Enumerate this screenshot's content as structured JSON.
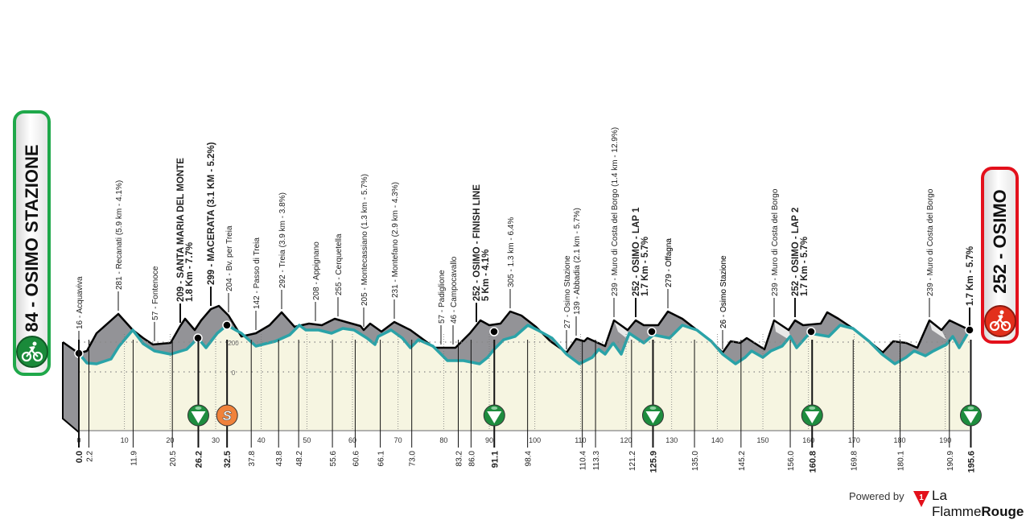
{
  "start": {
    "label": "84 - OSIMO STAZIONE",
    "altitude": 84,
    "name": "OSIMO STAZIONE",
    "color": "#1fa84a",
    "icon": "cyclist-icon"
  },
  "finish": {
    "label": "252 - OSIMO",
    "altitude": 252,
    "name": "OSIMO",
    "color": "#e3101b",
    "icon": "cyclist-icon"
  },
  "footer": {
    "powered_by": "Powered by",
    "brand_a": "La Flamme",
    "brand_b": "Rouge"
  },
  "colors": {
    "profile_fill": "#939397",
    "route_line": "#2aa3a8",
    "ground_fill": "#f6f5e1",
    "climb_highlight": "#e8e8e8",
    "sprint_green": "#1e8c3e",
    "sprint_orange": "#f0823a"
  },
  "chart_data": {
    "type": "area",
    "title": "",
    "xlabel": "km",
    "ylabel": "altitude (m)",
    "x_ticks": [
      0,
      10,
      20,
      30,
      40,
      50,
      60,
      70,
      80,
      90,
      100,
      110,
      120,
      130,
      140,
      150,
      160,
      170,
      180,
      190
    ],
    "y_ticks": [
      0,
      200
    ],
    "xlim": [
      0,
      195.6
    ],
    "total_km": 195.6,
    "km_markers": [
      {
        "km": "0.0",
        "bold": true
      },
      {
        "km": "2.2"
      },
      {
        "km": "11.9"
      },
      {
        "km": "20.5"
      },
      {
        "km": "26.2",
        "bold": true
      },
      {
        "km": "32.5",
        "bold": true
      },
      {
        "km": "37.8"
      },
      {
        "km": "43.8"
      },
      {
        "km": "48.2"
      },
      {
        "km": "55.6"
      },
      {
        "km": "60.6"
      },
      {
        "km": "66.1"
      },
      {
        "km": "73.0"
      },
      {
        "km": "83.2"
      },
      {
        "km": "86.0"
      },
      {
        "km": "91.1",
        "bold": true
      },
      {
        "km": "98.4"
      },
      {
        "km": "110.4"
      },
      {
        "km": "113.3"
      },
      {
        "km": "121.2"
      },
      {
        "km": "125.9",
        "bold": true
      },
      {
        "km": "135.0"
      },
      {
        "km": "145.2"
      },
      {
        "km": "156.0"
      },
      {
        "km": "160.8",
        "bold": true
      },
      {
        "km": "169.8"
      },
      {
        "km": "180.1"
      },
      {
        "km": "190.9"
      },
      {
        "km": "195.6",
        "bold": true
      }
    ],
    "waypoints": [
      {
        "km": 2.2,
        "label": "16 - Acquaviva"
      },
      {
        "km": 11.9,
        "label": "281 - Recanati (5.9 km - 4.1%)"
      },
      {
        "km": 20.5,
        "label": "57 - Fontenoce"
      },
      {
        "km": 26.2,
        "label": "209 - SANTA MARIA DEL MONTE",
        "sub": "1.8 Km - 7.7%",
        "bold": true
      },
      {
        "km": 26.2,
        "label": "299 - MACERATA (3.1 KM - 5.2%)",
        "bold": true
      },
      {
        "km": 32.5,
        "label": "204 - Bv. per Treia"
      },
      {
        "km": 37.8,
        "label": "142 - Passo di Treia"
      },
      {
        "km": 43.8,
        "label": "292 - Treia (3.9 km - 3.8%)"
      },
      {
        "km": 48.2,
        "label": "208 - Appignano"
      },
      {
        "km": 55.6,
        "label": "255 - Cerquetella"
      },
      {
        "km": 60.6,
        "label": "205 - Montecassiano (1.3 km - 5.7%)"
      },
      {
        "km": 66.1,
        "label": "231 - Montefano (2.9 km - 4.3%)"
      },
      {
        "km": 83.2,
        "label": "57 - Padiglione"
      },
      {
        "km": 86.0,
        "label": "46 - Campocavallo"
      },
      {
        "km": 91.1,
        "label": "252 - OSIMO - FINISH LINE",
        "sub": "5 Km - 4.1%",
        "bold": true
      },
      {
        "km": 98.4,
        "label": "305 - 1.3 km - 6.4%"
      },
      {
        "km": 110.4,
        "label": "27 - Osimo Stazione"
      },
      {
        "km": 113.3,
        "label": "139 - Abbadia (2.1 km - 5.7%)"
      },
      {
        "km": 121.2,
        "label": "239 - Muro di Costa del Borgo (1.4 km - 12.9%)"
      },
      {
        "km": 125.9,
        "label": "252 - OSIMO - LAP 1",
        "sub": "1.7 Km - 5.7%",
        "bold": true
      },
      {
        "km": 135.0,
        "label": "279 - Offagna"
      },
      {
        "km": 145.2,
        "label": "26 - Osimo Stazione"
      },
      {
        "km": 156.0,
        "label": "239 - Muro di Costa del Borgo"
      },
      {
        "km": 160.8,
        "label": "252 - OSIMO - LAP 2",
        "sub": "1.7 Km - 5.7%",
        "bold": true
      },
      {
        "km": 169.8,
        "label": "279 - Offagna"
      },
      {
        "km": 180.1,
        "label": "26 - Osimo Stazione"
      },
      {
        "km": 190.9,
        "label": "239 - Muro di Costa del Borgo"
      },
      {
        "km": 195.6,
        "label": "1.7 Km - 5.7%",
        "bold": true
      }
    ],
    "sprints": [
      {
        "km": 26.2,
        "type": "intermediate",
        "color": "#1e8c3e"
      },
      {
        "km": 32.5,
        "type": "sprint",
        "symbol": "S",
        "color": "#f0823a"
      },
      {
        "km": 91.1,
        "type": "intermediate",
        "color": "#1e8c3e"
      },
      {
        "km": 125.9,
        "type": "intermediate",
        "color": "#1e8c3e"
      },
      {
        "km": 160.8,
        "type": "intermediate",
        "color": "#1e8c3e"
      },
      {
        "km": 195.6,
        "type": "finish",
        "color": "#1e8c3e"
      }
    ],
    "axis_labels": {
      "zero": "0",
      "two_hundred": "200"
    }
  }
}
